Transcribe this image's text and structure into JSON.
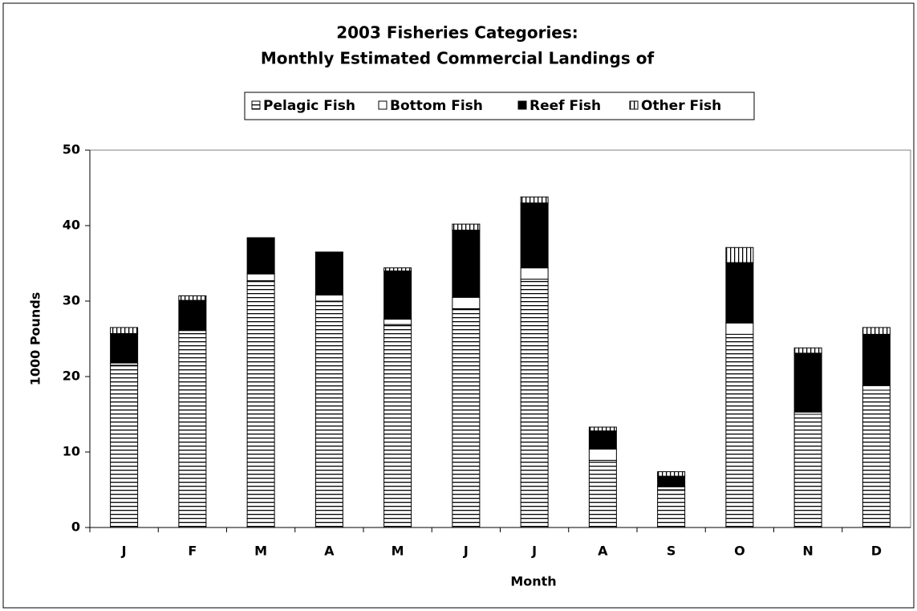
{
  "chart_data": {
    "type": "stacked_bar",
    "title": "2003 Fisheries Categories:",
    "subtitle": "Monthly Estimated Commercial Landings of",
    "x_label": "Month",
    "y_label": "1000 Pounds",
    "categories": [
      "J",
      "F",
      "M",
      "A",
      "M",
      "J",
      "J",
      "A",
      "S",
      "O",
      "N",
      "D"
    ],
    "series": [
      {
        "name": "Pelagic Fish",
        "color": "#000000",
        "pattern": "horizontal-lines",
        "values": [
          21.5,
          25.7,
          32.7,
          30.0,
          26.9,
          29.0,
          32.9,
          8.9,
          5.0,
          25.6,
          15.0,
          18.2
        ]
      },
      {
        "name": "Bottom Fish",
        "color": "#ffffff",
        "pattern": "solid",
        "values": [
          0.3,
          0.4,
          0.9,
          0.8,
          0.7,
          1.5,
          1.5,
          1.5,
          0.4,
          1.5,
          0.3,
          0.6
        ]
      },
      {
        "name": "Reef Fish",
        "color": "#000000",
        "pattern": "solid",
        "values": [
          3.9,
          4.0,
          4.7,
          5.6,
          6.4,
          8.9,
          8.6,
          2.4,
          1.4,
          8.0,
          7.8,
          6.8
        ]
      },
      {
        "name": "Other Fish",
        "color": "#000000",
        "pattern": "vertical-lines",
        "values": [
          0.8,
          0.6,
          0.1,
          0.1,
          0.4,
          0.8,
          0.8,
          0.5,
          0.6,
          2.0,
          0.7,
          0.9
        ]
      }
    ],
    "ylim": [
      0,
      50
    ],
    "yticks": [
      0,
      10,
      20,
      30,
      40,
      50
    ],
    "grid": false,
    "legend": "top"
  }
}
